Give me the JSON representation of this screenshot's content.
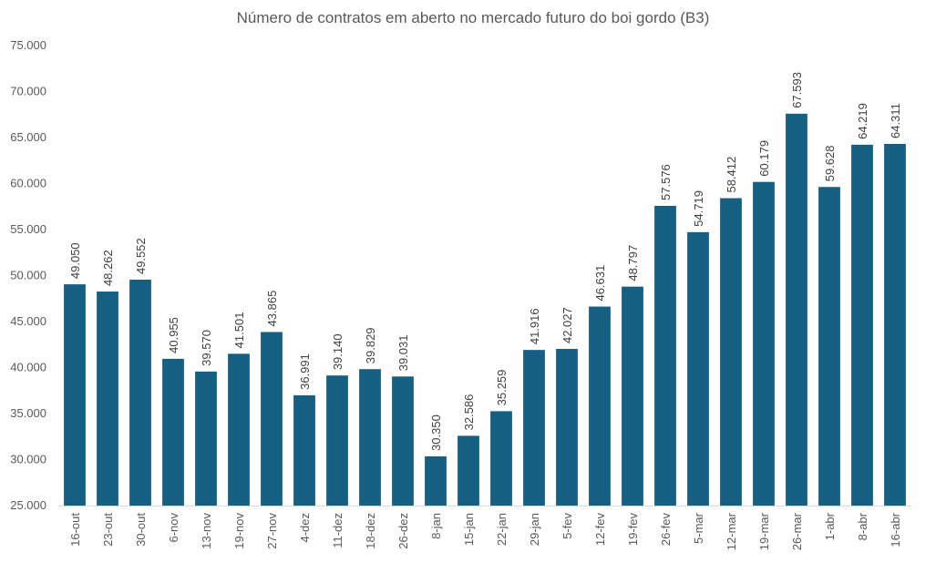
{
  "chart_data": {
    "type": "bar",
    "title": "Número de contratos em aberto no mercado futuro do boi gordo (B3)",
    "xlabel": "",
    "ylabel": "",
    "ylim": [
      25000,
      75000
    ],
    "ytick_step": 5000,
    "ytick_labels": [
      "25.000",
      "30.000",
      "35.000",
      "40.000",
      "45.000",
      "50.000",
      "55.000",
      "60.000",
      "65.000",
      "70.000",
      "75.000"
    ],
    "categories": [
      "16-out",
      "23-out",
      "30-out",
      "6-nov",
      "13-nov",
      "19-nov",
      "27-nov",
      "4-dez",
      "11-dez",
      "18-dez",
      "26-dez",
      "8-jan",
      "15-jan",
      "22-jan",
      "29-jan",
      "5-fev",
      "12-fev",
      "19-fev",
      "26-fev",
      "5-mar",
      "12-mar",
      "19-mar",
      "26-mar",
      "1-abr",
      "8-abr",
      "16-abr"
    ],
    "values": [
      49050,
      48262,
      49552,
      40955,
      39570,
      41501,
      43865,
      36991,
      39140,
      39829,
      39031,
      30350,
      32586,
      35259,
      41916,
      42027,
      46631,
      48797,
      57576,
      54719,
      58412,
      60179,
      67593,
      59628,
      64219,
      64311
    ],
    "data_labels": [
      "49.050",
      "48.262",
      "49.552",
      "40.955",
      "39.570",
      "41.501",
      "43.865",
      "36.991",
      "39.140",
      "39.829",
      "39.031",
      "30.350",
      "32.586",
      "35.259",
      "41.916",
      "42.027",
      "46.631",
      "48.797",
      "57.576",
      "54.719",
      "58.412",
      "60.179",
      "67.593",
      "59.628",
      "64.219",
      "64.311"
    ],
    "grid": false,
    "legend": "none",
    "bar_color": "#156082"
  }
}
